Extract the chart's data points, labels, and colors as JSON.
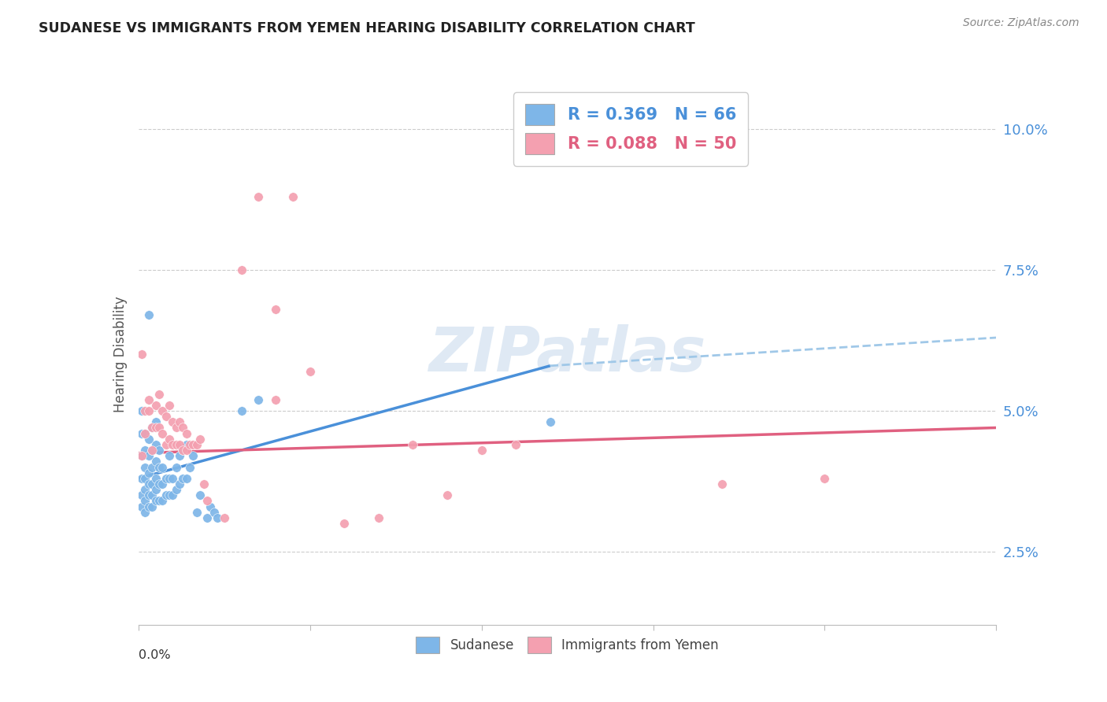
{
  "title": "SUDANESE VS IMMIGRANTS FROM YEMEN HEARING DISABILITY CORRELATION CHART",
  "source": "Source: ZipAtlas.com",
  "ylabel": "Hearing Disability",
  "right_yticks": [
    "2.5%",
    "5.0%",
    "7.5%",
    "10.0%"
  ],
  "right_ytick_vals": [
    0.025,
    0.05,
    0.075,
    0.1
  ],
  "xlim": [
    0.0,
    0.25
  ],
  "ylim": [
    0.012,
    0.108
  ],
  "color_blue": "#7EB6E8",
  "color_pink": "#F4A0B0",
  "trendline_blue": "#4A90D9",
  "trendline_pink": "#E06080",
  "trendline_dash_blue": "#A0C8E8",
  "watermark": "ZIPatlas",
  "sudanese_points": [
    [
      0.001,
      0.033
    ],
    [
      0.001,
      0.035
    ],
    [
      0.001,
      0.038
    ],
    [
      0.001,
      0.042
    ],
    [
      0.001,
      0.046
    ],
    [
      0.001,
      0.05
    ],
    [
      0.002,
      0.032
    ],
    [
      0.002,
      0.034
    ],
    [
      0.002,
      0.036
    ],
    [
      0.002,
      0.038
    ],
    [
      0.002,
      0.04
    ],
    [
      0.002,
      0.043
    ],
    [
      0.002,
      0.046
    ],
    [
      0.003,
      0.033
    ],
    [
      0.003,
      0.035
    ],
    [
      0.003,
      0.037
    ],
    [
      0.003,
      0.039
    ],
    [
      0.003,
      0.042
    ],
    [
      0.003,
      0.045
    ],
    [
      0.003,
      0.067
    ],
    [
      0.004,
      0.033
    ],
    [
      0.004,
      0.035
    ],
    [
      0.004,
      0.037
    ],
    [
      0.004,
      0.04
    ],
    [
      0.004,
      0.043
    ],
    [
      0.004,
      0.047
    ],
    [
      0.005,
      0.034
    ],
    [
      0.005,
      0.036
    ],
    [
      0.005,
      0.038
    ],
    [
      0.005,
      0.041
    ],
    [
      0.005,
      0.044
    ],
    [
      0.005,
      0.048
    ],
    [
      0.006,
      0.034
    ],
    [
      0.006,
      0.037
    ],
    [
      0.006,
      0.04
    ],
    [
      0.006,
      0.043
    ],
    [
      0.007,
      0.034
    ],
    [
      0.007,
      0.037
    ],
    [
      0.007,
      0.04
    ],
    [
      0.008,
      0.035
    ],
    [
      0.008,
      0.038
    ],
    [
      0.009,
      0.035
    ],
    [
      0.009,
      0.038
    ],
    [
      0.009,
      0.042
    ],
    [
      0.01,
      0.035
    ],
    [
      0.01,
      0.038
    ],
    [
      0.011,
      0.036
    ],
    [
      0.011,
      0.04
    ],
    [
      0.012,
      0.037
    ],
    [
      0.012,
      0.042
    ],
    [
      0.013,
      0.038
    ],
    [
      0.013,
      0.043
    ],
    [
      0.014,
      0.038
    ],
    [
      0.014,
      0.044
    ],
    [
      0.015,
      0.04
    ],
    [
      0.016,
      0.042
    ],
    [
      0.017,
      0.032
    ],
    [
      0.018,
      0.035
    ],
    [
      0.02,
      0.031
    ],
    [
      0.021,
      0.033
    ],
    [
      0.022,
      0.032
    ],
    [
      0.023,
      0.031
    ],
    [
      0.03,
      0.05
    ],
    [
      0.035,
      0.052
    ],
    [
      0.12,
      0.048
    ]
  ],
  "yemen_points": [
    [
      0.001,
      0.06
    ],
    [
      0.001,
      0.042
    ],
    [
      0.002,
      0.05
    ],
    [
      0.002,
      0.046
    ],
    [
      0.003,
      0.05
    ],
    [
      0.003,
      0.052
    ],
    [
      0.004,
      0.043
    ],
    [
      0.004,
      0.047
    ],
    [
      0.005,
      0.047
    ],
    [
      0.005,
      0.051
    ],
    [
      0.006,
      0.047
    ],
    [
      0.006,
      0.053
    ],
    [
      0.007,
      0.046
    ],
    [
      0.007,
      0.05
    ],
    [
      0.008,
      0.044
    ],
    [
      0.008,
      0.049
    ],
    [
      0.009,
      0.045
    ],
    [
      0.009,
      0.051
    ],
    [
      0.01,
      0.044
    ],
    [
      0.01,
      0.048
    ],
    [
      0.011,
      0.044
    ],
    [
      0.011,
      0.047
    ],
    [
      0.012,
      0.044
    ],
    [
      0.012,
      0.048
    ],
    [
      0.013,
      0.043
    ],
    [
      0.013,
      0.047
    ],
    [
      0.014,
      0.043
    ],
    [
      0.014,
      0.046
    ],
    [
      0.015,
      0.044
    ],
    [
      0.016,
      0.044
    ],
    [
      0.017,
      0.044
    ],
    [
      0.018,
      0.045
    ],
    [
      0.019,
      0.037
    ],
    [
      0.02,
      0.034
    ],
    [
      0.025,
      0.031
    ],
    [
      0.03,
      0.075
    ],
    [
      0.035,
      0.088
    ],
    [
      0.04,
      0.068
    ],
    [
      0.04,
      0.052
    ],
    [
      0.045,
      0.088
    ],
    [
      0.05,
      0.057
    ],
    [
      0.06,
      0.03
    ],
    [
      0.07,
      0.031
    ],
    [
      0.08,
      0.044
    ],
    [
      0.09,
      0.035
    ],
    [
      0.1,
      0.043
    ],
    [
      0.11,
      0.044
    ],
    [
      0.17,
      0.037
    ],
    [
      0.2,
      0.038
    ]
  ]
}
